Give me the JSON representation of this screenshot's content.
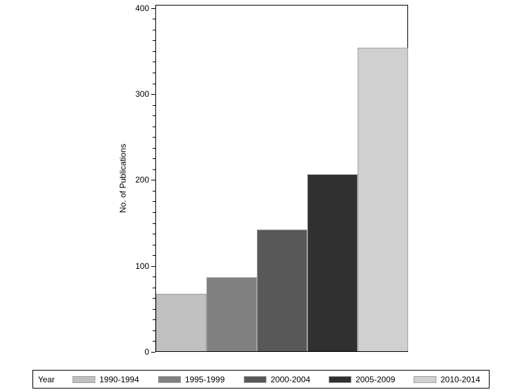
{
  "chart_data": {
    "type": "bar",
    "title": "",
    "xlabel": "",
    "ylabel": "No. of Publications",
    "ylim": [
      0,
      400
    ],
    "yticks": [
      0,
      100,
      200,
      300,
      400
    ],
    "grid": false,
    "legend_position": "bottom",
    "legend_title": "Year",
    "categories": [
      "1990-1994",
      "1995-1999",
      "2000-2004",
      "2005-2009",
      "2010-2014"
    ],
    "values": [
      67,
      86,
      142,
      206,
      353
    ],
    "colors": [
      "#c0c0c0",
      "#808080",
      "#585858",
      "#303030",
      "#d0d0d0"
    ]
  },
  "axis": {
    "y_title": "No. of Publications",
    "tick_labels": [
      "0",
      "100",
      "200",
      "300",
      "400"
    ]
  },
  "legend": {
    "title": "Year",
    "items": [
      {
        "label": "1990-1994",
        "color": "#c0c0c0"
      },
      {
        "label": "1995-1999",
        "color": "#808080"
      },
      {
        "label": "2000-2004",
        "color": "#585858"
      },
      {
        "label": "2005-2009",
        "color": "#303030"
      },
      {
        "label": "2010-2014",
        "color": "#d0d0d0"
      }
    ]
  }
}
